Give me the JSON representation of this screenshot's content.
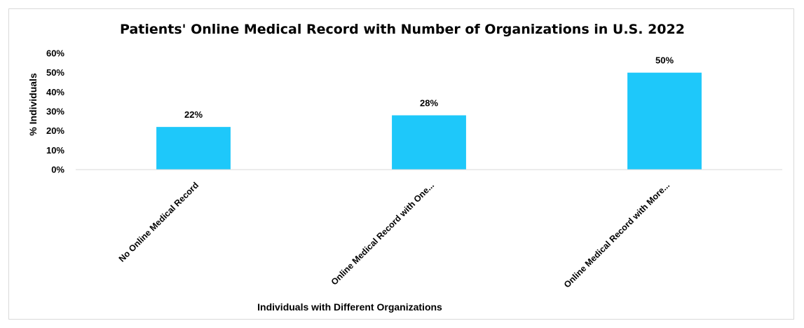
{
  "chart_data": {
    "type": "bar",
    "title": "Patients' Online Medical Record with Number of Organizations in U.S. 2022",
    "xlabel": "Individuals with Different Organizations",
    "ylabel": "% Individuals",
    "categories": [
      "No Online Medical Record",
      "Online Medical Record with One...",
      "Online Medical Record with More..."
    ],
    "values": [
      22,
      28,
      50
    ],
    "data_labels": [
      "22%",
      "28%",
      "50%"
    ],
    "ylim": [
      0,
      60
    ],
    "yticks": [
      "0%",
      "10%",
      "20%",
      "30%",
      "40%",
      "50%",
      "60%"
    ],
    "bar_color": "#1ec8fa",
    "axis_color": "#d9d9d9",
    "grid": false,
    "legend": "none"
  }
}
